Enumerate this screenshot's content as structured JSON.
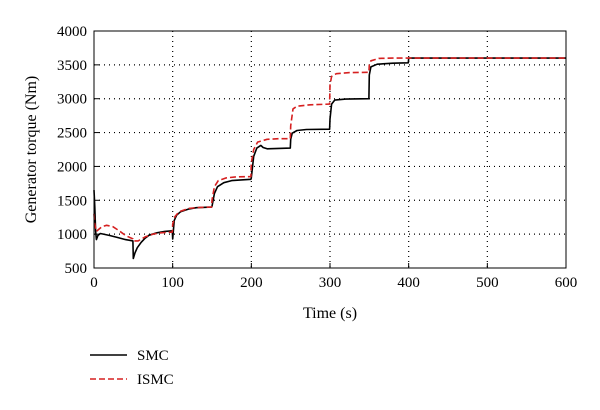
{
  "chart_data": {
    "type": "line",
    "title": "",
    "xlabel": "Time (s)",
    "ylabel": "Generator torque (Nm)",
    "xlim": [
      0,
      600
    ],
    "ylim": [
      500,
      4000
    ],
    "xticks": [
      0,
      100,
      200,
      300,
      400,
      500,
      600
    ],
    "yticks": [
      500,
      1000,
      1500,
      2000,
      2500,
      3000,
      3500,
      4000
    ],
    "grid": "dotted",
    "legend_position": "below-left",
    "series": [
      {
        "name": "SMC",
        "color": "#000000",
        "dash": "solid",
        "points": [
          [
            0,
            1650
          ],
          [
            1,
            1400
          ],
          [
            2,
            1050
          ],
          [
            3,
            920
          ],
          [
            5,
            980
          ],
          [
            8,
            1010
          ],
          [
            12,
            1000
          ],
          [
            20,
            980
          ],
          [
            30,
            950
          ],
          [
            40,
            920
          ],
          [
            49.5,
            900
          ],
          [
            50,
            640
          ],
          [
            52,
            720
          ],
          [
            55,
            800
          ],
          [
            60,
            880
          ],
          [
            65,
            940
          ],
          [
            70,
            985
          ],
          [
            80,
            1020
          ],
          [
            90,
            1040
          ],
          [
            99.5,
            1050
          ],
          [
            100,
            930
          ],
          [
            102,
            1200
          ],
          [
            105,
            1280
          ],
          [
            110,
            1330
          ],
          [
            120,
            1370
          ],
          [
            130,
            1390
          ],
          [
            149.5,
            1400
          ],
          [
            150,
            1410
          ],
          [
            153,
            1600
          ],
          [
            157,
            1700
          ],
          [
            165,
            1760
          ],
          [
            175,
            1790
          ],
          [
            199.5,
            1810
          ],
          [
            200,
            1830
          ],
          [
            203,
            2150
          ],
          [
            207,
            2270
          ],
          [
            212,
            2310
          ],
          [
            215,
            2280
          ],
          [
            220,
            2260
          ],
          [
            249.5,
            2270
          ],
          [
            250,
            2400
          ],
          [
            252,
            2490
          ],
          [
            258,
            2530
          ],
          [
            270,
            2545
          ],
          [
            299.5,
            2550
          ],
          [
            300,
            2700
          ],
          [
            302,
            2920
          ],
          [
            306,
            2980
          ],
          [
            320,
            2995
          ],
          [
            349.5,
            3000
          ],
          [
            350,
            3350
          ],
          [
            352,
            3470
          ],
          [
            360,
            3510
          ],
          [
            380,
            3525
          ],
          [
            399.5,
            3530
          ],
          [
            400,
            3600
          ],
          [
            600,
            3600
          ]
        ]
      },
      {
        "name": "ISMC",
        "color": "#d62020",
        "dash": "dashed",
        "points": [
          [
            0,
            1300
          ],
          [
            1,
            1150
          ],
          [
            3,
            1040
          ],
          [
            6,
            1070
          ],
          [
            10,
            1110
          ],
          [
            16,
            1130
          ],
          [
            24,
            1110
          ],
          [
            32,
            1050
          ],
          [
            40,
            980
          ],
          [
            49.5,
            930
          ],
          [
            50,
            900
          ],
          [
            56,
            900
          ],
          [
            65,
            960
          ],
          [
            75,
            1000
          ],
          [
            85,
            1020
          ],
          [
            99.5,
            1030
          ],
          [
            100,
            1150
          ],
          [
            103,
            1260
          ],
          [
            108,
            1330
          ],
          [
            120,
            1380
          ],
          [
            135,
            1395
          ],
          [
            149.5,
            1400
          ],
          [
            150,
            1500
          ],
          [
            153,
            1700
          ],
          [
            158,
            1790
          ],
          [
            168,
            1830
          ],
          [
            180,
            1845
          ],
          [
            199.5,
            1850
          ],
          [
            200,
            2050
          ],
          [
            203,
            2250
          ],
          [
            208,
            2360
          ],
          [
            220,
            2400
          ],
          [
            235,
            2410
          ],
          [
            249.5,
            2410
          ],
          [
            250,
            2600
          ],
          [
            253,
            2850
          ],
          [
            258,
            2890
          ],
          [
            275,
            2910
          ],
          [
            299.5,
            2920
          ],
          [
            300,
            3200
          ],
          [
            302,
            3330
          ],
          [
            308,
            3370
          ],
          [
            325,
            3385
          ],
          [
            349.5,
            3390
          ],
          [
            350,
            3500
          ],
          [
            352,
            3560
          ],
          [
            362,
            3595
          ],
          [
            380,
            3600
          ],
          [
            600,
            3600
          ]
        ]
      }
    ]
  }
}
